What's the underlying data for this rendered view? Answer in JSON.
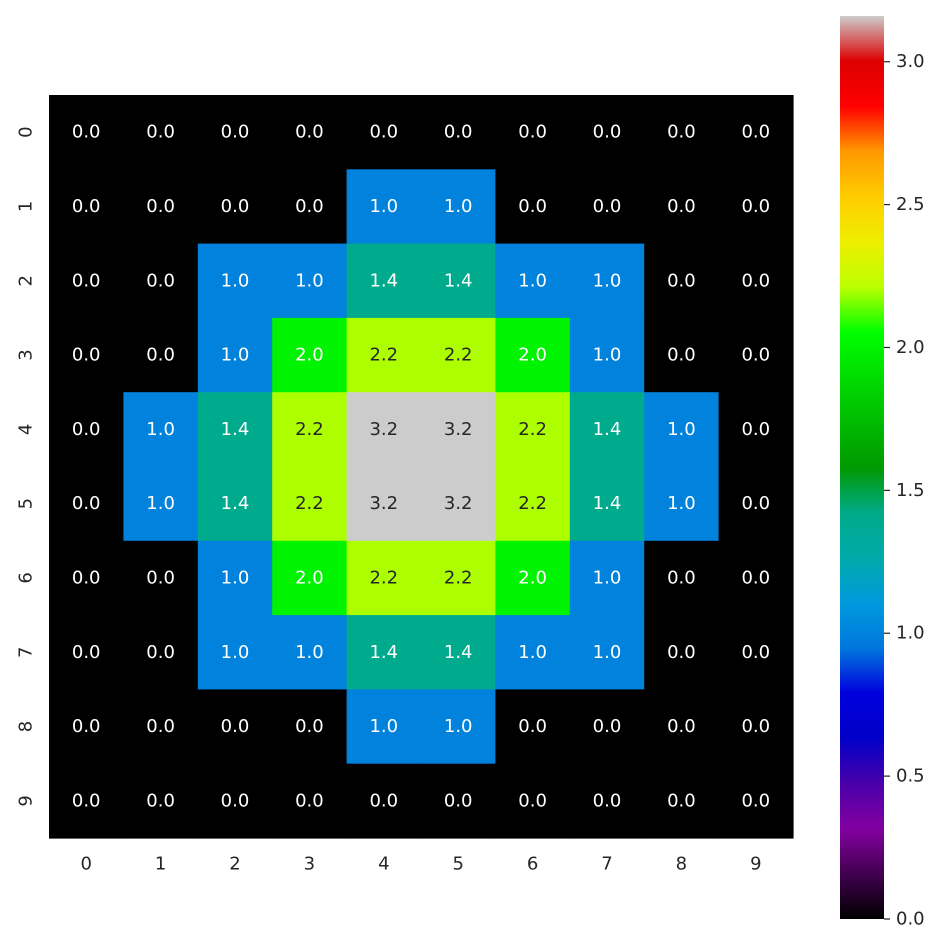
{
  "chart_data": {
    "type": "heatmap",
    "x_categories": [
      "0",
      "1",
      "2",
      "3",
      "4",
      "5",
      "6",
      "7",
      "8",
      "9"
    ],
    "y_categories": [
      "0",
      "1",
      "2",
      "3",
      "4",
      "5",
      "6",
      "7",
      "8",
      "9"
    ],
    "values": [
      [
        0,
        0,
        0,
        0,
        0,
        0,
        0,
        0,
        0,
        0
      ],
      [
        0,
        0,
        0,
        0,
        1,
        1,
        0,
        0,
        0,
        0
      ],
      [
        0,
        0,
        1,
        1,
        1.4,
        1.4,
        1,
        1,
        0,
        0
      ],
      [
        0,
        0,
        1,
        2,
        2.2,
        2.2,
        2,
        1,
        0,
        0
      ],
      [
        0,
        1,
        1.4,
        2.2,
        3.2,
        3.2,
        2.2,
        1.4,
        1,
        0
      ],
      [
        0,
        1,
        1.4,
        2.2,
        3.2,
        3.2,
        2.2,
        1.4,
        1,
        0
      ],
      [
        0,
        0,
        1,
        2,
        2.2,
        2.2,
        2,
        1,
        0,
        0
      ],
      [
        0,
        0,
        1,
        1,
        1.4,
        1.4,
        1,
        1,
        0,
        0
      ],
      [
        0,
        0,
        0,
        0,
        1,
        1,
        0,
        0,
        0,
        0
      ],
      [
        0,
        0,
        0,
        0,
        0,
        0,
        0,
        0,
        0,
        0
      ]
    ],
    "value_labels": [
      [
        "0.0",
        "0.0",
        "0.0",
        "0.0",
        "0.0",
        "0.0",
        "0.0",
        "0.0",
        "0.0",
        "0.0"
      ],
      [
        "0.0",
        "0.0",
        "0.0",
        "0.0",
        "1.0",
        "1.0",
        "0.0",
        "0.0",
        "0.0",
        "0.0"
      ],
      [
        "0.0",
        "0.0",
        "1.0",
        "1.0",
        "1.4",
        "1.4",
        "1.0",
        "1.0",
        "0.0",
        "0.0"
      ],
      [
        "0.0",
        "0.0",
        "1.0",
        "2.0",
        "2.2",
        "2.2",
        "2.0",
        "1.0",
        "0.0",
        "0.0"
      ],
      [
        "0.0",
        "1.0",
        "1.4",
        "2.2",
        "3.2",
        "3.2",
        "2.2",
        "1.4",
        "1.0",
        "0.0"
      ],
      [
        "0.0",
        "1.0",
        "1.4",
        "2.2",
        "3.2",
        "3.2",
        "2.2",
        "1.4",
        "1.0",
        "0.0"
      ],
      [
        "0.0",
        "0.0",
        "1.0",
        "2.0",
        "2.2",
        "2.2",
        "2.0",
        "1.0",
        "0.0",
        "0.0"
      ],
      [
        "0.0",
        "0.0",
        "1.0",
        "1.0",
        "1.4",
        "1.4",
        "1.0",
        "1.0",
        "0.0",
        "0.0"
      ],
      [
        "0.0",
        "0.0",
        "0.0",
        "0.0",
        "1.0",
        "1.0",
        "0.0",
        "0.0",
        "0.0",
        "0.0"
      ],
      [
        "0.0",
        "0.0",
        "0.0",
        "0.0",
        "0.0",
        "0.0",
        "0.0",
        "0.0",
        "0.0",
        "0.0"
      ]
    ],
    "colormap": "nipy_spectral",
    "vmin": 0,
    "vmax": 3.16,
    "colorbar": {
      "ticks": [
        0,
        0.5,
        1,
        1.5,
        2,
        2.5,
        3
      ],
      "tick_labels": [
        "0.0",
        "0.5",
        "1.0",
        "1.5",
        "2.0",
        "2.5",
        "3.0"
      ],
      "stops": [
        {
          "v": 0.0,
          "color": "#000000"
        },
        {
          "v": 0.1,
          "color": "#8300a0"
        },
        {
          "v": 0.15,
          "color": "#4a00aa"
        },
        {
          "v": 0.2,
          "color": "#0000c8"
        },
        {
          "v": 0.25,
          "color": "#0000dd"
        },
        {
          "v": 0.3,
          "color": "#0077dd"
        },
        {
          "v": 0.35,
          "color": "#0099dd"
        },
        {
          "v": 0.4,
          "color": "#00aaaa"
        },
        {
          "v": 0.45,
          "color": "#00aa88"
        },
        {
          "v": 0.5,
          "color": "#009900"
        },
        {
          "v": 0.55,
          "color": "#00bb00"
        },
        {
          "v": 0.6,
          "color": "#00dd00"
        },
        {
          "v": 0.65,
          "color": "#00ff00"
        },
        {
          "v": 0.7,
          "color": "#bbff00"
        },
        {
          "v": 0.75,
          "color": "#eeee00"
        },
        {
          "v": 0.8,
          "color": "#ffcc00"
        },
        {
          "v": 0.85,
          "color": "#ff9900"
        },
        {
          "v": 0.9,
          "color": "#ff0000"
        },
        {
          "v": 0.95,
          "color": "#dd0000"
        },
        {
          "v": 1.0,
          "color": "#cccccc"
        }
      ]
    },
    "text_color_dark": "#262626",
    "text_color_light": "#ffffff"
  }
}
